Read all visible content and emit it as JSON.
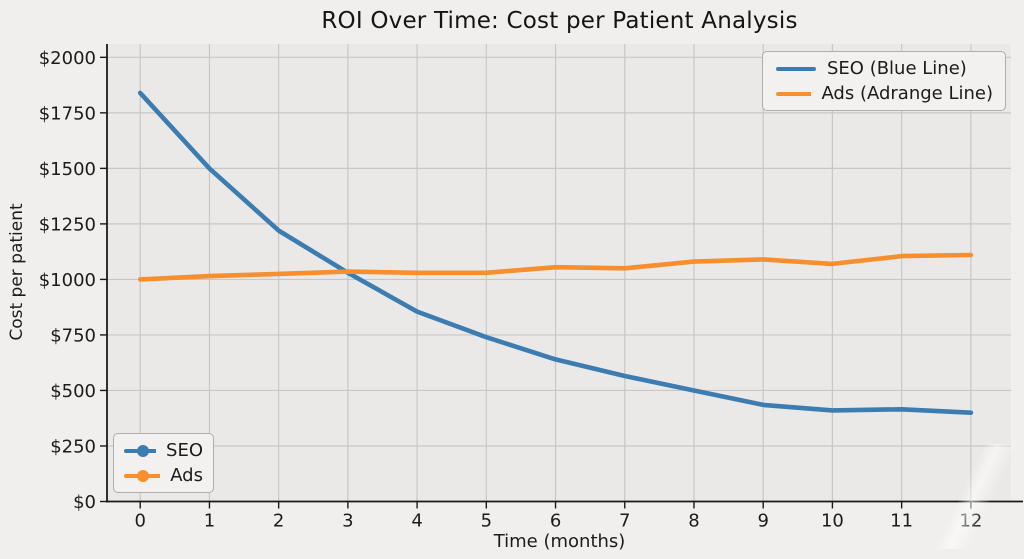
{
  "chart_data": {
    "type": "line",
    "title": "ROI Over Time: Cost per Patient Analysis",
    "xlabel": "Time (months)",
    "ylabel": "Cost per patient",
    "x": [
      0,
      1,
      2,
      3,
      4,
      5,
      6,
      7,
      8,
      9,
      10,
      11,
      12
    ],
    "series": [
      {
        "name": "SEO",
        "legend_label_main": "SEO (Blue Line)",
        "legend_label_inset": "SEO",
        "color": "#3c7cb0",
        "values": [
          1840,
          1500,
          1220,
          1030,
          855,
          740,
          640,
          565,
          500,
          435,
          410,
          415,
          400
        ]
      },
      {
        "name": "Ads",
        "legend_label_main": "Ads (Adrange Line)",
        "legend_label_inset": "Ads",
        "color": "#f78f2e",
        "values": [
          1000,
          1015,
          1025,
          1035,
          1030,
          1030,
          1055,
          1050,
          1080,
          1090,
          1070,
          1105,
          1110
        ]
      }
    ],
    "xticks": [
      0,
      1,
      2,
      3,
      4,
      5,
      6,
      7,
      8,
      9,
      10,
      11,
      12
    ],
    "xticklabels": [
      "0",
      "1",
      "2",
      "3",
      "4",
      "5",
      "6",
      "7",
      "8",
      "9",
      "10",
      "11",
      "12"
    ],
    "yticks": [
      0,
      250,
      500,
      750,
      1000,
      1250,
      1500,
      1750,
      2000
    ],
    "yticklabels": [
      "$0",
      "$250",
      "$500",
      "$750",
      "$1000",
      "$1250",
      "$1500",
      "$1750",
      "$2000"
    ],
    "xlim": [
      -0.48,
      12.58
    ],
    "ylim": [
      0,
      2060
    ],
    "grid": true,
    "legend_positions": [
      "upper right",
      "lower left"
    ]
  },
  "colors": {
    "figure_bg": "#f0efed",
    "axes_bg": "#eae9e7",
    "grid": "#c7c7c5",
    "spine": "#1a1a1a",
    "text": "#1c1c1c",
    "seo_line": "#3c7cb0",
    "ads_line": "#f78f2e"
  }
}
